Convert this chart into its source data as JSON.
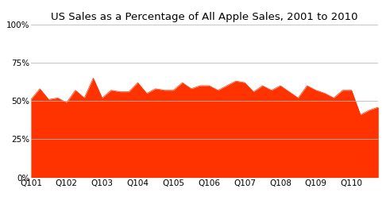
{
  "title": "US Sales as a Percentage of All Apple Sales, 2001 to 2010",
  "x_labels": [
    "Q101",
    "Q102",
    "Q103",
    "Q104",
    "Q105",
    "Q106",
    "Q107",
    "Q108",
    "Q109",
    "Q110"
  ],
  "x_tick_positions": [
    0,
    4,
    8,
    12,
    16,
    20,
    24,
    28,
    32,
    36
  ],
  "values": [
    51,
    58,
    51,
    52,
    49,
    57,
    52,
    65,
    52,
    57,
    56,
    56,
    62,
    55,
    58,
    57,
    57,
    62,
    58,
    60,
    60,
    57,
    60,
    63,
    62,
    56,
    60,
    57,
    60,
    56,
    52,
    60,
    57,
    55,
    52,
    57,
    57,
    41,
    44,
    46
  ],
  "fill_color": "#FF3300",
  "line_color": "#FF3300",
  "bg_color": "#FFFFFF",
  "grid_color": "#BBBBBB",
  "yticks": [
    0,
    25,
    50,
    75,
    100
  ],
  "ylim": [
    0,
    100
  ],
  "title_fontsize": 9.5,
  "tick_fontsize": 7.5
}
